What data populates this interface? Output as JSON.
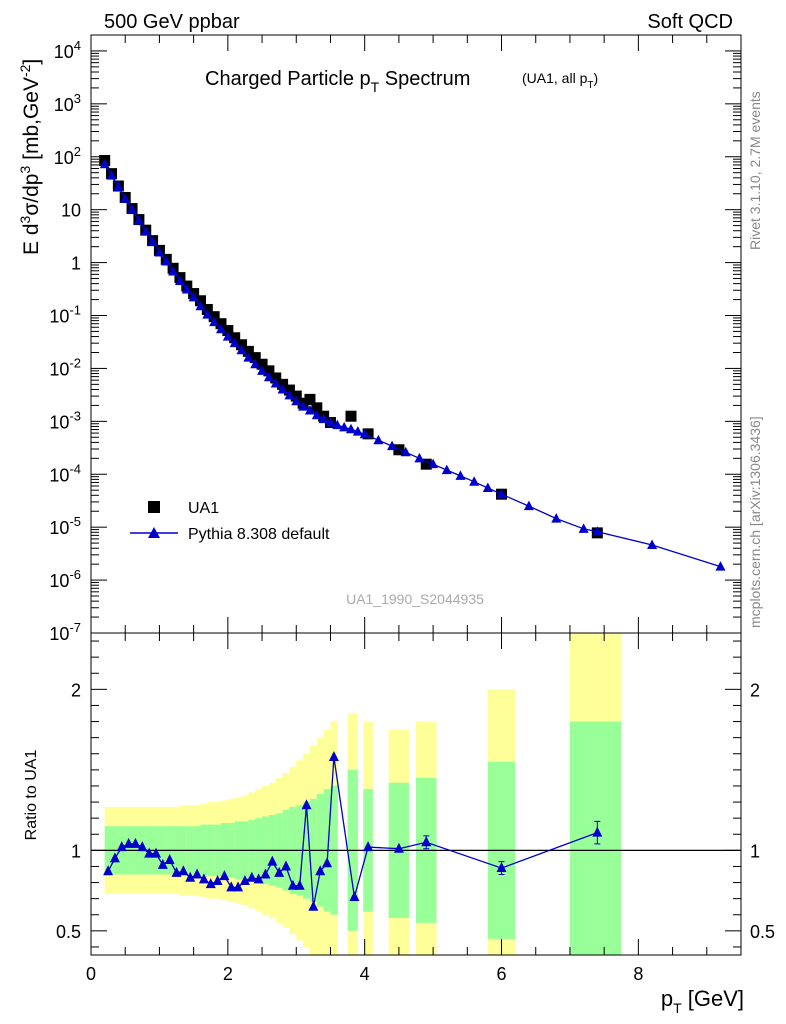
{
  "header": {
    "left": "500 GeV ppbar",
    "right": "Soft QCD"
  },
  "side_text": {
    "top": "Rivet 3.1.10,  2.7M events",
    "bottom": "mcplots.cern.ch [arXiv:1306.3436]"
  },
  "colors": {
    "data": "#000000",
    "mc": "#0000cc",
    "band_inner": "#99ff99",
    "band_outer": "#ffff99"
  },
  "chart_data": [
    {
      "type": "scatter",
      "panel": "main",
      "title": "Charged Particle p_T Spectrum",
      "subtitle": "(UA1, all p_T)",
      "watermark": "UA1_1990_S2044935",
      "ylabel": "E d³σ/dp³ [mb,GeV⁻²]",
      "yscale": "log",
      "ylim": [
        1e-07,
        20000
      ],
      "xlim": [
        0,
        9.5
      ],
      "y_ticks": [
        "10⁴",
        "10³",
        "10²",
        "10",
        "1",
        "10⁻¹",
        "10⁻²",
        "10⁻³",
        "10⁻⁴",
        "10⁻⁵",
        "10⁻⁶",
        "10⁻⁷"
      ],
      "legend_position": "bottom-left",
      "series": [
        {
          "name": "UA1",
          "marker": "square",
          "x": [
            0.2,
            0.3,
            0.4,
            0.5,
            0.6,
            0.7,
            0.8,
            0.9,
            1.0,
            1.1,
            1.2,
            1.3,
            1.4,
            1.5,
            1.6,
            1.7,
            1.8,
            1.9,
            2.0,
            2.1,
            2.2,
            2.3,
            2.4,
            2.5,
            2.6,
            2.7,
            2.8,
            2.9,
            3.0,
            3.1,
            3.2,
            3.3,
            3.4,
            3.5,
            3.8,
            4.05,
            4.5,
            4.9,
            6.0,
            7.4
          ],
          "y": [
            85,
            48,
            28,
            17,
            10.5,
            6.5,
            4.1,
            2.6,
            1.7,
            1.15,
            0.78,
            0.52,
            0.36,
            0.26,
            0.19,
            0.13,
            0.095,
            0.07,
            0.052,
            0.038,
            0.028,
            0.021,
            0.016,
            0.012,
            0.009,
            0.0066,
            0.005,
            0.0039,
            0.003,
            0.0022,
            0.0026,
            0.0018,
            0.00125,
            0.00095,
            0.00125,
            0.00058,
            0.00029,
            0.000155,
            4.2e-05,
            7.8e-06
          ]
        },
        {
          "name": "Pythia 8.308 default",
          "marker": "triangle",
          "x": [
            0.2,
            0.3,
            0.4,
            0.5,
            0.6,
            0.7,
            0.8,
            0.9,
            1.0,
            1.1,
            1.2,
            1.3,
            1.4,
            1.5,
            1.6,
            1.7,
            1.8,
            1.9,
            2.0,
            2.1,
            2.2,
            2.3,
            2.4,
            2.5,
            2.6,
            2.7,
            2.8,
            2.9,
            3.0,
            3.1,
            3.2,
            3.3,
            3.4,
            3.5,
            3.6,
            3.7,
            3.8,
            3.9,
            4.0,
            4.2,
            4.4,
            4.6,
            4.8,
            5.0,
            5.2,
            5.4,
            5.6,
            5.8,
            6.0,
            6.4,
            6.8,
            7.2,
            7.4,
            8.2,
            9.2
          ],
          "y": [
            72,
            44,
            27,
            16,
            10,
            6.2,
            3.9,
            2.5,
            1.55,
            1.05,
            0.68,
            0.45,
            0.31,
            0.22,
            0.15,
            0.104,
            0.075,
            0.055,
            0.04,
            0.03,
            0.022,
            0.016,
            0.012,
            0.009,
            0.0068,
            0.0052,
            0.004,
            0.0031,
            0.0024,
            0.0019,
            0.0016,
            0.0013,
            0.0011,
            0.00095,
            0.00085,
            0.00077,
            0.00071,
            0.00064,
            0.00057,
            0.00044,
            0.00034,
            0.00026,
            0.0002,
            0.000155,
            0.00012,
            9.3e-05,
            7.2e-05,
            5.5e-05,
            4.2e-05,
            2.5e-05,
            1.45e-05,
            9.3e-06,
            8.2e-06,
            4.6e-06,
            1.8e-06
          ]
        }
      ]
    },
    {
      "type": "line",
      "panel": "ratio",
      "ylabel": "Ratio to UA1",
      "xlabel": "p_T [GeV]",
      "ylim": [
        0.35,
        2.35
      ],
      "xlim": [
        0,
        9.5
      ],
      "x_ticks": [
        0,
        2,
        4,
        6,
        8
      ],
      "y_ticks": [
        0.5,
        1,
        2
      ],
      "reference_line": 1,
      "series": [
        {
          "name": "Pythia 8.308 default",
          "x": [
            0.25,
            0.35,
            0.45,
            0.55,
            0.65,
            0.75,
            0.85,
            0.95,
            1.05,
            1.15,
            1.25,
            1.35,
            1.45,
            1.55,
            1.65,
            1.75,
            1.85,
            1.95,
            2.05,
            2.15,
            2.25,
            2.35,
            2.45,
            2.55,
            2.65,
            2.75,
            2.85,
            2.95,
            3.05,
            3.15,
            3.25,
            3.35,
            3.45,
            3.55,
            3.85,
            4.05,
            4.5,
            4.9,
            6.0,
            7.4
          ],
          "y": [
            0.87,
            0.95,
            1.02,
            1.04,
            1.04,
            1.02,
            0.98,
            0.98,
            0.91,
            0.94,
            0.86,
            0.87,
            0.83,
            0.85,
            0.82,
            0.79,
            0.81,
            0.84,
            0.77,
            0.77,
            0.81,
            0.83,
            0.82,
            0.85,
            0.93,
            0.86,
            0.9,
            0.78,
            0.78,
            1.28,
            0.65,
            0.87,
            0.92,
            1.58,
            0.71,
            1.02,
            1.01,
            1.05,
            0.89,
            1.11
          ]
        }
      ],
      "bands": {
        "x_edges": [
          0.2,
          0.3,
          0.4,
          0.5,
          0.6,
          0.7,
          0.8,
          0.9,
          1.0,
          1.1,
          1.2,
          1.3,
          1.4,
          1.5,
          1.6,
          1.7,
          1.8,
          1.9,
          2.0,
          2.1,
          2.2,
          2.3,
          2.4,
          2.5,
          2.6,
          2.7,
          2.8,
          2.9,
          3.0,
          3.1,
          3.2,
          3.3,
          3.4,
          3.5,
          3.6
        ],
        "inner": [
          0.15,
          0.15,
          0.15,
          0.15,
          0.15,
          0.15,
          0.15,
          0.15,
          0.15,
          0.15,
          0.15,
          0.15,
          0.15,
          0.15,
          0.16,
          0.16,
          0.16,
          0.17,
          0.17,
          0.18,
          0.18,
          0.19,
          0.2,
          0.21,
          0.22,
          0.23,
          0.25,
          0.27,
          0.28,
          0.3,
          0.32,
          0.35,
          0.38,
          0.4
        ],
        "outer": [
          0.27,
          0.27,
          0.27,
          0.27,
          0.27,
          0.27,
          0.27,
          0.27,
          0.27,
          0.27,
          0.27,
          0.28,
          0.28,
          0.28,
          0.29,
          0.3,
          0.3,
          0.31,
          0.32,
          0.33,
          0.34,
          0.36,
          0.38,
          0.4,
          0.42,
          0.45,
          0.48,
          0.52,
          0.56,
          0.6,
          0.65,
          0.7,
          0.75,
          0.8
        ],
        "isolated": [
          {
            "x0": 3.75,
            "x1": 3.9,
            "inner": 0.5,
            "outer": 0.85
          },
          {
            "x0": 3.98,
            "x1": 4.12,
            "inner": 0.38,
            "outer": 0.8
          },
          {
            "x0": 4.35,
            "x1": 4.65,
            "inner": 0.42,
            "outer": 0.75
          },
          {
            "x0": 4.75,
            "x1": 5.05,
            "inner": 0.45,
            "outer": 0.8
          },
          {
            "x0": 5.8,
            "x1": 6.2,
            "inner": 0.55,
            "outer": 1.0
          },
          {
            "x0": 7.0,
            "x1": 7.75,
            "inner": 0.8,
            "outer": 1.6
          }
        ]
      }
    }
  ]
}
